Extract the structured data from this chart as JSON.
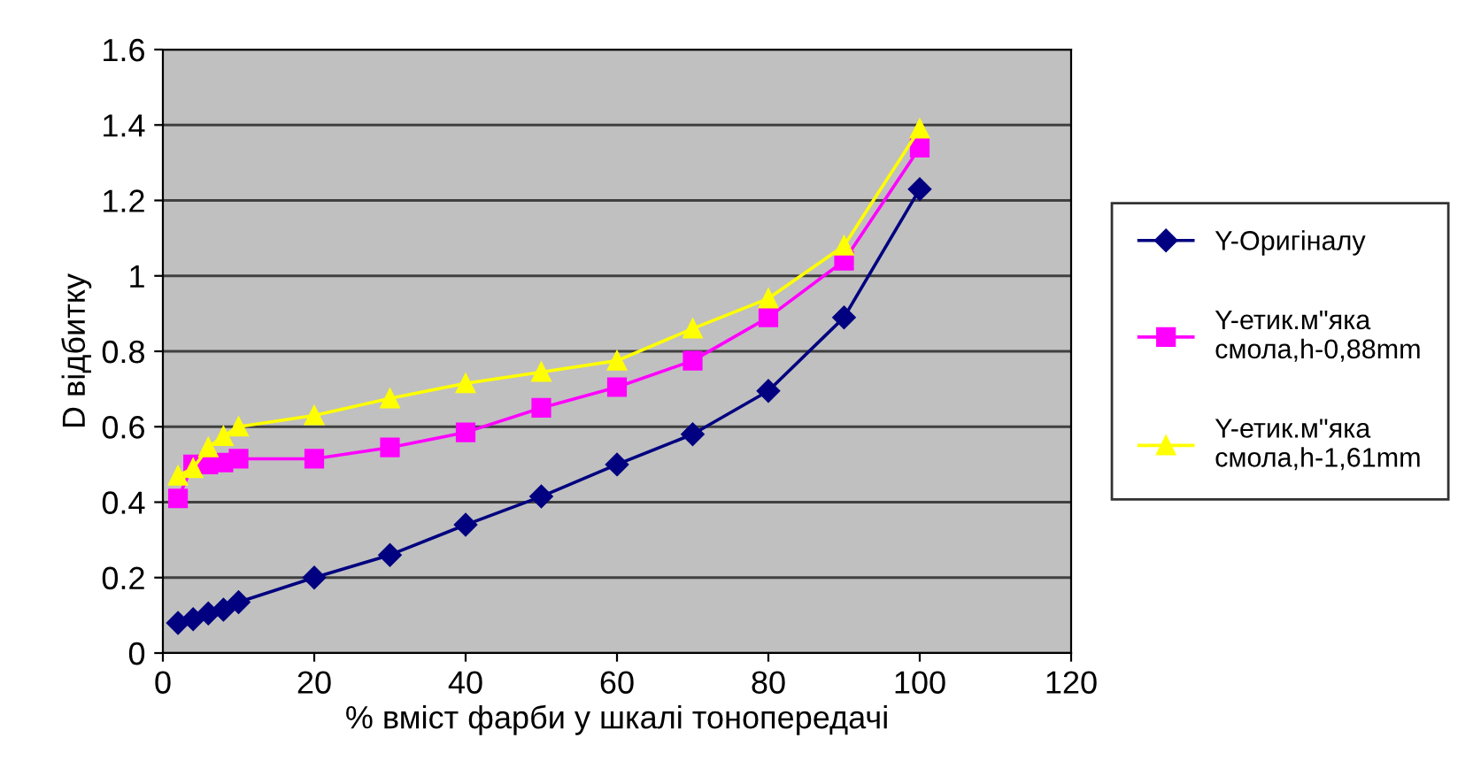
{
  "chart_data": {
    "type": "line",
    "xlabel": "% вміст фарби у шкалі тонопередачі",
    "ylabel": "D відбитку",
    "x": [
      2,
      4,
      6,
      8,
      10,
      20,
      30,
      40,
      50,
      60,
      70,
      80,
      90,
      100
    ],
    "series": [
      {
        "name": "Y-Оригіналу",
        "color": "#000080",
        "marker": "diamond",
        "values": [
          0.08,
          0.09,
          0.105,
          0.115,
          0.135,
          0.2,
          0.26,
          0.34,
          0.415,
          0.5,
          0.58,
          0.695,
          0.89,
          1.23
        ]
      },
      {
        "name": "Y-етик.м\"яка\nсмола,h-0,88mm",
        "color": "#ff00ff",
        "marker": "square",
        "values": [
          0.41,
          0.5,
          0.5,
          0.505,
          0.515,
          0.515,
          0.545,
          0.585,
          0.65,
          0.705,
          0.775,
          0.89,
          1.04,
          1.34
        ]
      },
      {
        "name": "Y-етик.м\"яка\nсмола,h-1,61mm",
        "color": "#ffff00",
        "marker": "triangle",
        "values": [
          0.47,
          0.49,
          0.545,
          0.575,
          0.6,
          0.63,
          0.675,
          0.715,
          0.745,
          0.775,
          0.86,
          0.94,
          1.08,
          1.39
        ]
      }
    ],
    "xlim": [
      0,
      120
    ],
    "xticks": [
      0,
      20,
      40,
      60,
      80,
      100,
      120
    ],
    "ylim": [
      0,
      1.6
    ],
    "yticks": [
      0,
      0.2,
      0.4,
      0.6,
      0.8,
      1,
      1.2,
      1.4,
      1.6
    ],
    "grid": "y",
    "legend": "right"
  }
}
